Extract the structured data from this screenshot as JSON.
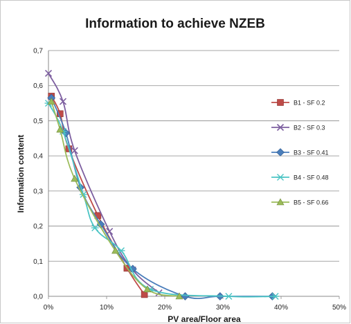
{
  "chart_data": {
    "type": "line",
    "title": "Information to achieve NZEB",
    "xlabel": "PV area/Floor area",
    "ylabel": "Information content",
    "xlim": [
      0,
      50
    ],
    "ylim": [
      0,
      0.7
    ],
    "x_ticks": [
      "0%",
      "10%",
      "20%",
      "30%",
      "40%",
      "50%"
    ],
    "y_ticks": [
      "0,0",
      "0,1",
      "0,2",
      "0,3",
      "0,4",
      "0,5",
      "0,6",
      "0,7"
    ],
    "grid": "horizontal",
    "legend_position": "right",
    "series": [
      {
        "name": "B1 - SF 0.2",
        "color": "#be4b48",
        "marker": "square",
        "x": [
          0.5,
          2,
          3.5,
          8.5,
          13.5,
          16.5
        ],
        "y": [
          0.57,
          0.52,
          0.42,
          0.23,
          0.08,
          0.005
        ]
      },
      {
        "name": "B2 - SF 0.3",
        "color": "#7d5fa0",
        "marker": "x",
        "x": [
          0,
          2.5,
          4.5,
          10.5,
          14.5,
          19
        ],
        "y": [
          0.635,
          0.555,
          0.415,
          0.185,
          0.075,
          0.01
        ]
      },
      {
        "name": "B3 - SF 0.41",
        "color": "#4a7ebb",
        "marker": "diamond",
        "x": [
          0.5,
          3,
          5.5,
          9,
          14.5,
          23.5,
          29.5,
          38.5
        ],
        "y": [
          0.565,
          0.465,
          0.31,
          0.205,
          0.078,
          0.0,
          0.0,
          0.0
        ]
      },
      {
        "name": "B4 - SF 0.48",
        "color": "#4bc4c4",
        "marker": "asterisk",
        "x": [
          0,
          2.5,
          6,
          8,
          12.5,
          17.5,
          31,
          39
        ],
        "y": [
          0.55,
          0.47,
          0.29,
          0.195,
          0.13,
          0.02,
          0.0,
          0.0
        ]
      },
      {
        "name": "B5 - SF 0.66",
        "color": "#9bbb59",
        "marker": "triangle",
        "x": [
          0.5,
          2,
          4.5,
          11.5,
          17,
          22.5
        ],
        "y": [
          0.555,
          0.475,
          0.335,
          0.13,
          0.02,
          0.0
        ]
      }
    ]
  }
}
